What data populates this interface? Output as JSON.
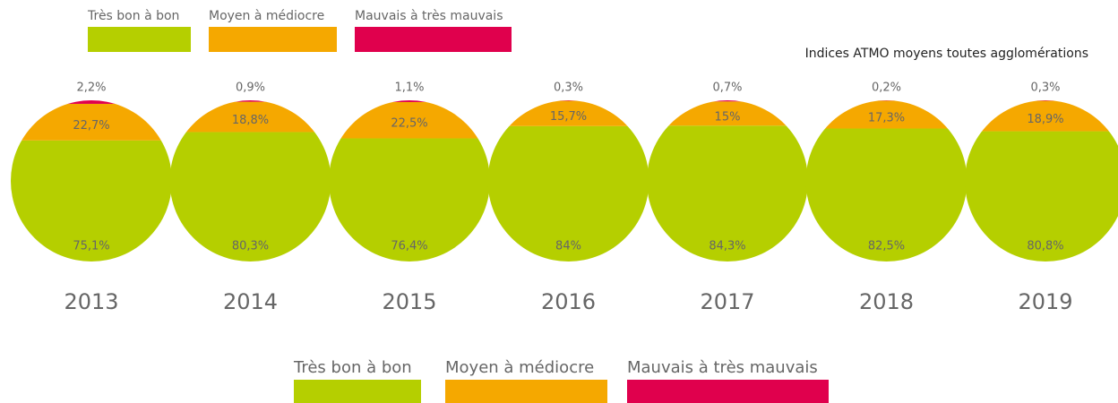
{
  "chart_data": {
    "type": "circles",
    "title": "Indices ATMO moyens toutes agglomérations",
    "categories": [
      "2013",
      "2014",
      "2015",
      "2016",
      "2017",
      "2018",
      "2019"
    ],
    "series": [
      {
        "name": "Très bon à bon",
        "color": "#b5cf00",
        "values": [
          75.1,
          80.3,
          76.4,
          84,
          84.3,
          82.5,
          80.8
        ],
        "value_labels": [
          "75,1%",
          "80,3%",
          "76,4%",
          "84%",
          "84,3%",
          "82,5%",
          "80,8%"
        ]
      },
      {
        "name": "Moyen à médiocre",
        "color": "#f5a800",
        "values": [
          22.7,
          18.8,
          22.5,
          15.7,
          15,
          17.3,
          18.9
        ],
        "value_labels": [
          "22,7%",
          "18,8%",
          "22,5%",
          "15,7%",
          "15%",
          "17,3%",
          "18,9%"
        ]
      },
      {
        "name": "Mauvais à très mauvais",
        "color": "#e0004d",
        "values": [
          2.2,
          0.9,
          1.1,
          0.3,
          0.7,
          0.2,
          0.3
        ],
        "value_labels": [
          "2,2%",
          "0,9%",
          "1,1%",
          "0,3%",
          "0,7%",
          "0,2%",
          "0,3%"
        ]
      }
    ]
  }
}
